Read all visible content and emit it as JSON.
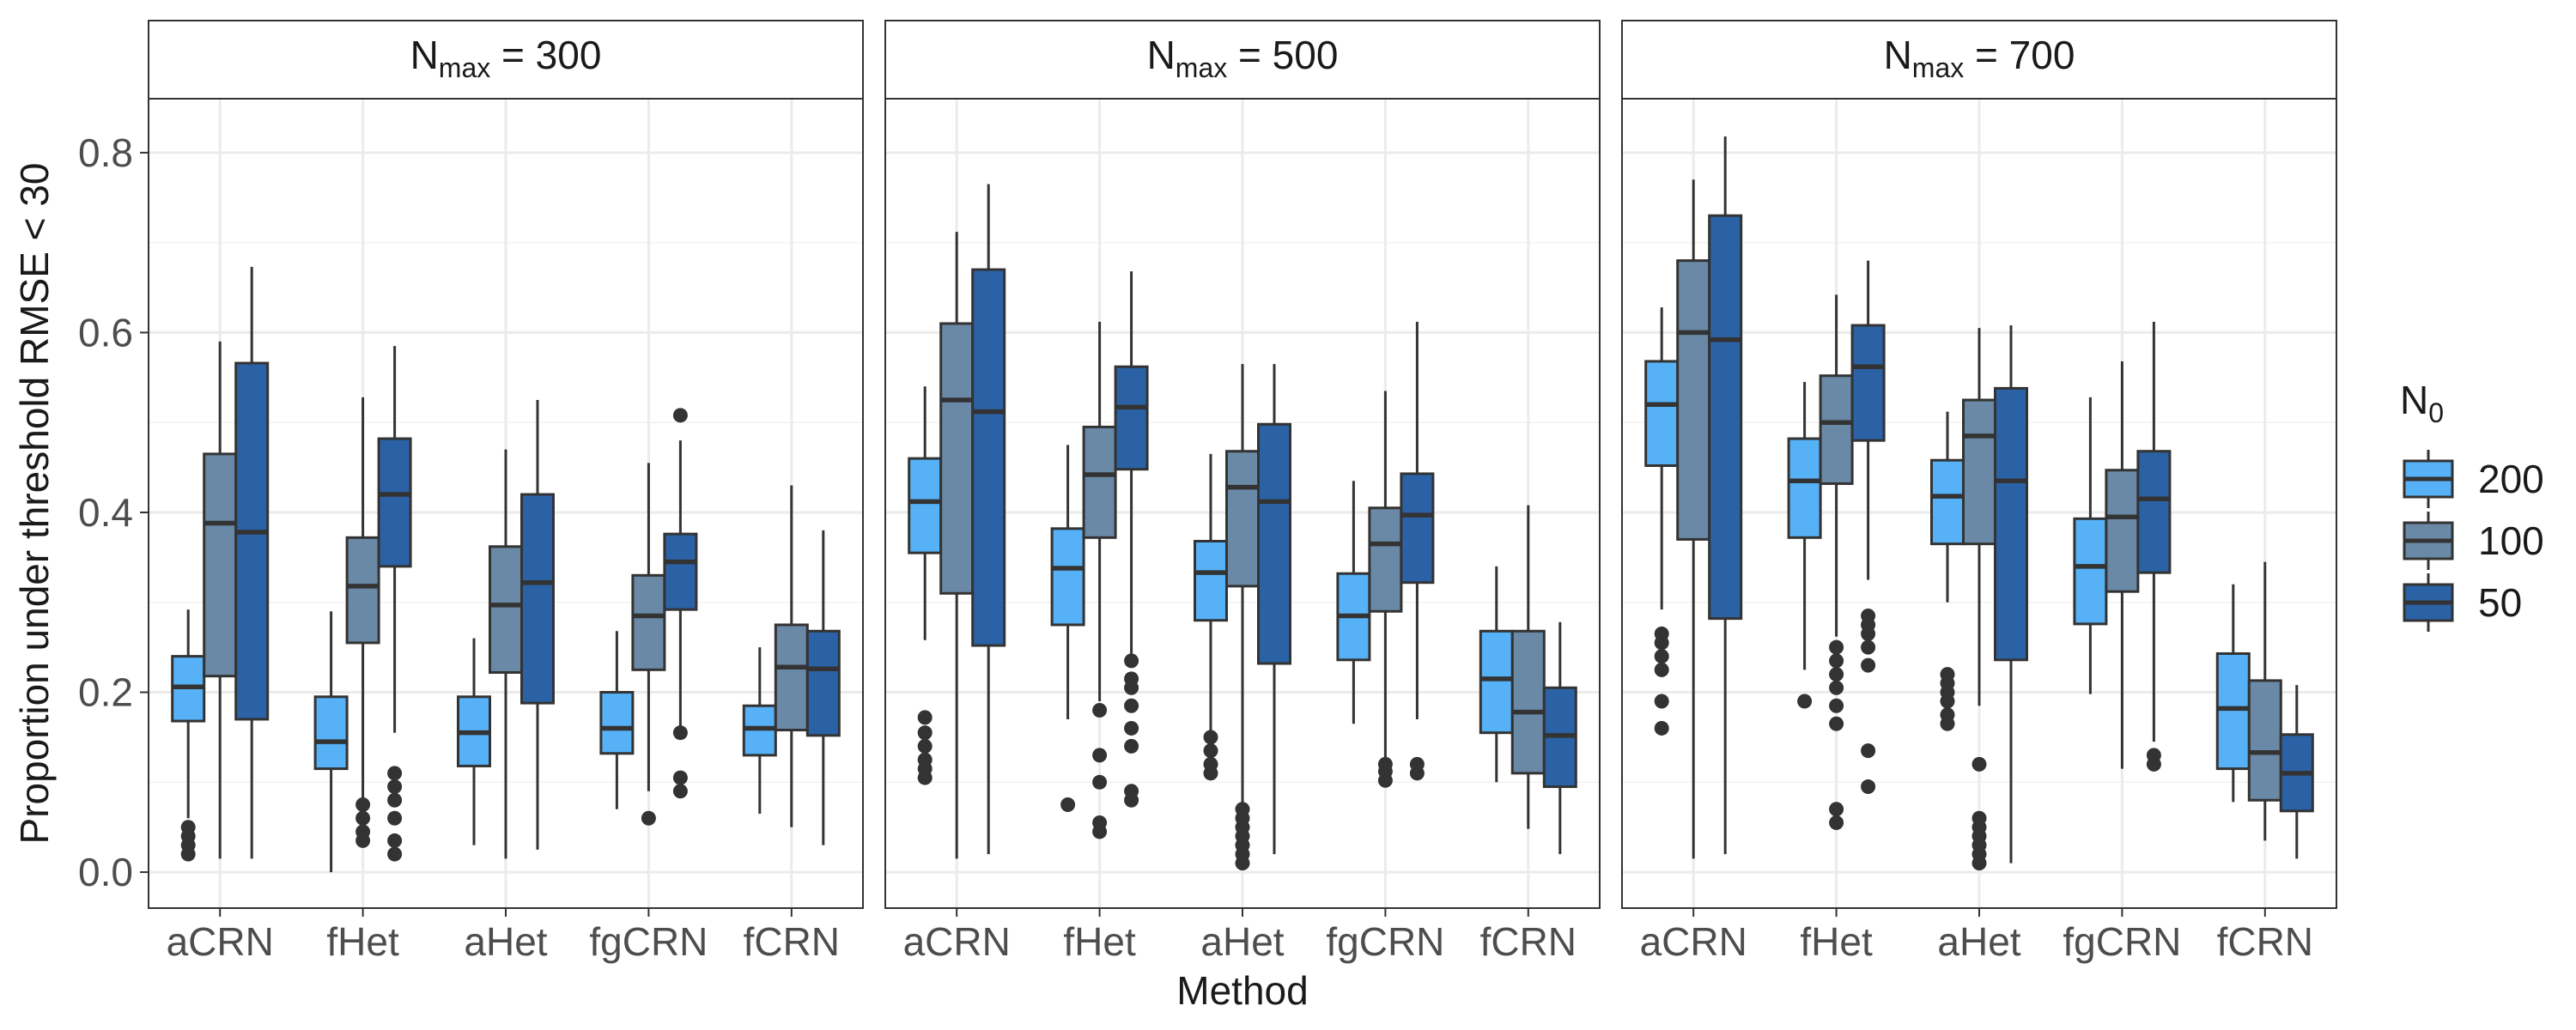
{
  "chart_data": {
    "type": "boxplot",
    "xlabel": "Method",
    "ylabel": "Proportion under threshold RMSE < 30",
    "ylim": [
      -0.04,
      0.86
    ],
    "yticks": [
      0.0,
      0.2,
      0.4,
      0.6,
      0.8
    ],
    "ytick_labels": [
      "0.0",
      "0.2",
      "0.4",
      "0.6",
      "0.8"
    ],
    "categories": [
      "aCRN",
      "fHet",
      "aHet",
      "fgCRN",
      "fCRN"
    ],
    "legend": {
      "title_main": "N",
      "title_sub": "0",
      "entries": [
        {
          "label": "200",
          "color": "#56b1f7"
        },
        {
          "label": "100",
          "color": "#6a89a6"
        },
        {
          "label": "50",
          "color": "#2b62a6"
        }
      ]
    },
    "facets": [
      {
        "title_main": "N",
        "title_sub": "max",
        "title_rest": " = 300",
        "boxes": [
          [
            {
              "q1": 0.168,
              "med": 0.206,
              "q3": 0.24,
              "lo": 0.06,
              "hi": 0.292,
              "out": [
                0.02,
                0.03,
                0.04,
                0.05
              ]
            },
            {
              "q1": 0.218,
              "med": 0.388,
              "q3": 0.465,
              "lo": 0.015,
              "hi": 0.59,
              "out": []
            },
            {
              "q1": 0.17,
              "med": 0.378,
              "q3": 0.566,
              "lo": 0.015,
              "hi": 0.673,
              "out": []
            }
          ],
          [
            {
              "q1": 0.115,
              "med": 0.145,
              "q3": 0.195,
              "lo": 0.0,
              "hi": 0.29,
              "out": []
            },
            {
              "q1": 0.255,
              "med": 0.318,
              "q3": 0.372,
              "lo": 0.08,
              "hi": 0.528,
              "out": [
                0.035,
                0.045,
                0.06,
                0.075
              ]
            },
            {
              "q1": 0.34,
              "med": 0.42,
              "q3": 0.482,
              "lo": 0.155,
              "hi": 0.585,
              "out": [
                0.02,
                0.035,
                0.06,
                0.08,
                0.095,
                0.11
              ]
            }
          ],
          [
            {
              "q1": 0.118,
              "med": 0.155,
              "q3": 0.195,
              "lo": 0.03,
              "hi": 0.26,
              "out": []
            },
            {
              "q1": 0.222,
              "med": 0.297,
              "q3": 0.362,
              "lo": 0.015,
              "hi": 0.47,
              "out": []
            },
            {
              "q1": 0.188,
              "med": 0.322,
              "q3": 0.42,
              "lo": 0.025,
              "hi": 0.525,
              "out": []
            }
          ],
          [
            {
              "q1": 0.132,
              "med": 0.16,
              "q3": 0.2,
              "lo": 0.07,
              "hi": 0.268,
              "out": []
            },
            {
              "q1": 0.225,
              "med": 0.285,
              "q3": 0.33,
              "lo": 0.09,
              "hi": 0.455,
              "out": [
                0.06
              ]
            },
            {
              "q1": 0.292,
              "med": 0.345,
              "q3": 0.376,
              "lo": 0.16,
              "hi": 0.48,
              "out": [
                0.09,
                0.105,
                0.155,
                0.508
              ]
            }
          ],
          [
            {
              "q1": 0.13,
              "med": 0.16,
              "q3": 0.185,
              "lo": 0.065,
              "hi": 0.25,
              "out": []
            },
            {
              "q1": 0.158,
              "med": 0.228,
              "q3": 0.275,
              "lo": 0.05,
              "hi": 0.43,
              "out": []
            },
            {
              "q1": 0.152,
              "med": 0.226,
              "q3": 0.268,
              "lo": 0.03,
              "hi": 0.38,
              "out": []
            }
          ]
        ]
      },
      {
        "title_main": "N",
        "title_sub": "max",
        "title_rest": " = 500",
        "boxes": [
          [
            {
              "q1": 0.355,
              "med": 0.412,
              "q3": 0.46,
              "lo": 0.258,
              "hi": 0.54,
              "out": [
                0.105,
                0.115,
                0.125,
                0.14,
                0.155,
                0.172
              ]
            },
            {
              "q1": 0.31,
              "med": 0.525,
              "q3": 0.61,
              "lo": 0.015,
              "hi": 0.712,
              "out": []
            },
            {
              "q1": 0.252,
              "med": 0.512,
              "q3": 0.67,
              "lo": 0.02,
              "hi": 0.765,
              "out": []
            }
          ],
          [
            {
              "q1": 0.275,
              "med": 0.338,
              "q3": 0.382,
              "lo": 0.17,
              "hi": 0.475,
              "out": [
                0.075
              ]
            },
            {
              "q1": 0.372,
              "med": 0.442,
              "q3": 0.495,
              "lo": 0.19,
              "hi": 0.612,
              "out": [
                0.045,
                0.055,
                0.1,
                0.13,
                0.18
              ]
            },
            {
              "q1": 0.448,
              "med": 0.517,
              "q3": 0.562,
              "lo": 0.24,
              "hi": 0.668,
              "out": [
                0.08,
                0.09,
                0.14,
                0.16,
                0.185,
                0.205,
                0.215,
                0.235
              ]
            }
          ],
          [
            {
              "q1": 0.28,
              "med": 0.333,
              "q3": 0.368,
              "lo": 0.155,
              "hi": 0.465,
              "out": [
                0.11,
                0.12,
                0.135,
                0.15
              ]
            },
            {
              "q1": 0.318,
              "med": 0.428,
              "q3": 0.468,
              "lo": 0.075,
              "hi": 0.565,
              "out": [
                0.01,
                0.02,
                0.03,
                0.04,
                0.05,
                0.06,
                0.07
              ]
            },
            {
              "q1": 0.232,
              "med": 0.412,
              "q3": 0.498,
              "lo": 0.02,
              "hi": 0.565,
              "out": []
            }
          ],
          [
            {
              "q1": 0.236,
              "med": 0.285,
              "q3": 0.332,
              "lo": 0.165,
              "hi": 0.435,
              "out": []
            },
            {
              "q1": 0.29,
              "med": 0.365,
              "q3": 0.405,
              "lo": 0.125,
              "hi": 0.535,
              "out": [
                0.102,
                0.112,
                0.12
              ]
            },
            {
              "q1": 0.322,
              "med": 0.397,
              "q3": 0.443,
              "lo": 0.17,
              "hi": 0.612,
              "out": [
                0.11,
                0.12
              ]
            }
          ],
          [
            {
              "q1": 0.155,
              "med": 0.215,
              "q3": 0.268,
              "lo": 0.1,
              "hi": 0.34,
              "out": []
            },
            {
              "q1": 0.11,
              "med": 0.178,
              "q3": 0.268,
              "lo": 0.048,
              "hi": 0.408,
              "out": []
            },
            {
              "q1": 0.095,
              "med": 0.152,
              "q3": 0.205,
              "lo": 0.02,
              "hi": 0.278,
              "out": []
            }
          ]
        ]
      },
      {
        "title_main": "N",
        "title_sub": "max",
        "title_rest": " = 700",
        "boxes": [
          [
            {
              "q1": 0.452,
              "med": 0.52,
              "q3": 0.568,
              "lo": 0.292,
              "hi": 0.628,
              "out": [
                0.16,
                0.19,
                0.225,
                0.24,
                0.255,
                0.265
              ]
            },
            {
              "q1": 0.37,
              "med": 0.6,
              "q3": 0.68,
              "lo": 0.015,
              "hi": 0.77,
              "out": []
            },
            {
              "q1": 0.282,
              "med": 0.592,
              "q3": 0.73,
              "lo": 0.02,
              "hi": 0.818,
              "out": []
            }
          ],
          [
            {
              "q1": 0.372,
              "med": 0.435,
              "q3": 0.482,
              "lo": 0.225,
              "hi": 0.545,
              "out": [
                0.19
              ]
            },
            {
              "q1": 0.432,
              "med": 0.5,
              "q3": 0.552,
              "lo": 0.262,
              "hi": 0.642,
              "out": [
                0.055,
                0.07,
                0.165,
                0.185,
                0.205,
                0.22,
                0.235,
                0.25
              ]
            },
            {
              "q1": 0.48,
              "med": 0.562,
              "q3": 0.608,
              "lo": 0.325,
              "hi": 0.68,
              "out": [
                0.095,
                0.135,
                0.23,
                0.25,
                0.265,
                0.275,
                0.285
              ]
            }
          ],
          [
            {
              "q1": 0.365,
              "med": 0.418,
              "q3": 0.458,
              "lo": 0.3,
              "hi": 0.512,
              "out": [
                0.165,
                0.175,
                0.19,
                0.2,
                0.21,
                0.22
              ]
            },
            {
              "q1": 0.365,
              "med": 0.485,
              "q3": 0.525,
              "lo": 0.185,
              "hi": 0.605,
              "out": [
                0.01,
                0.02,
                0.03,
                0.04,
                0.05,
                0.06,
                0.12
              ]
            },
            {
              "q1": 0.236,
              "med": 0.435,
              "q3": 0.538,
              "lo": 0.01,
              "hi": 0.608,
              "out": []
            }
          ],
          [
            {
              "q1": 0.276,
              "med": 0.34,
              "q3": 0.393,
              "lo": 0.198,
              "hi": 0.528,
              "out": []
            },
            {
              "q1": 0.312,
              "med": 0.395,
              "q3": 0.447,
              "lo": 0.115,
              "hi": 0.568,
              "out": []
            },
            {
              "q1": 0.333,
              "med": 0.415,
              "q3": 0.468,
              "lo": 0.145,
              "hi": 0.612,
              "out": [
                0.12,
                0.13
              ]
            }
          ],
          [
            {
              "q1": 0.115,
              "med": 0.182,
              "q3": 0.243,
              "lo": 0.078,
              "hi": 0.32,
              "out": []
            },
            {
              "q1": 0.08,
              "med": 0.133,
              "q3": 0.213,
              "lo": 0.035,
              "hi": 0.345,
              "out": []
            },
            {
              "q1": 0.068,
              "med": 0.11,
              "q3": 0.153,
              "lo": 0.015,
              "hi": 0.208,
              "out": []
            }
          ]
        ]
      }
    ]
  }
}
